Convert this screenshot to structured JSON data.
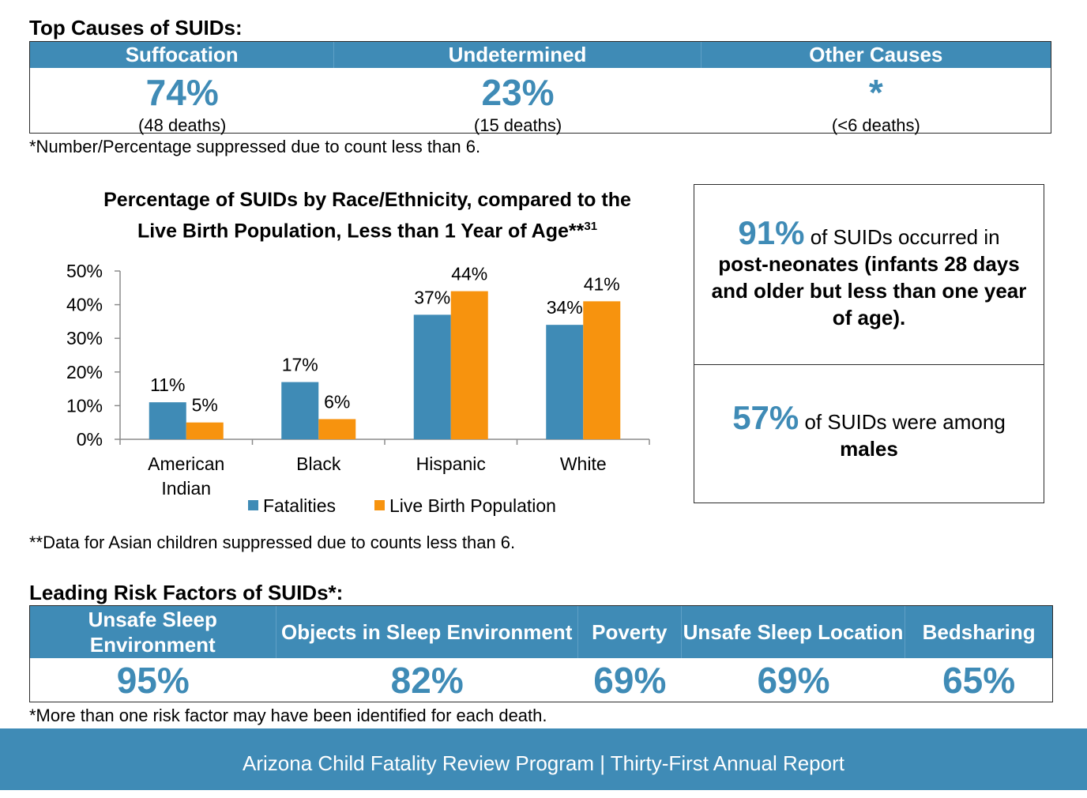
{
  "causes": {
    "title": "Top Causes of SUIDs:",
    "columns": [
      {
        "header": "Suffocation",
        "pct": "74%",
        "count": "(48 deaths)"
      },
      {
        "header": "Undetermined",
        "pct": "23%",
        "count": "(15 deaths)"
      },
      {
        "header": "Other Causes",
        "pct": "*",
        "count": "(<6 deaths)"
      }
    ],
    "note": "*Number/Percentage suppressed due to count less than 6."
  },
  "chart": {
    "title_line1": "Percentage of SUIDs by Race/Ethnicity, compared to the",
    "title_line2": "Live Birth Population, Less than 1 Year of Age**",
    "title_sup": "31",
    "note": "**Data for Asian children suppressed due to counts less than 6."
  },
  "chart_data": {
    "type": "bar",
    "categories": [
      "American Indian",
      "Black",
      "Hispanic",
      "White"
    ],
    "series": [
      {
        "name": "Fatalities",
        "values": [
          11,
          17,
          37,
          34
        ],
        "labels": [
          "11%",
          "17%",
          "37%",
          "34%"
        ],
        "color": "#3f8bb6"
      },
      {
        "name": "Live Birth Population",
        "values": [
          5,
          6,
          44,
          41
        ],
        "labels": [
          "5%",
          "6%",
          "44%",
          "41%"
        ],
        "color": "#f7930e"
      }
    ],
    "yticks": [
      "0%",
      "10%",
      "20%",
      "30%",
      "40%",
      "50%"
    ],
    "ylim": [
      0,
      50
    ],
    "legend": "bottom",
    "grid": false
  },
  "stats": {
    "stat1_pct": "91%",
    "stat1_text": " of SUIDs occurred in",
    "stat1_bold": "post-neonates (infants 28 days and older but less than one year of age).",
    "stat2_pct": "57%",
    "stat2_text": " of SUIDs were among",
    "stat2_bold": "males"
  },
  "risk": {
    "title": "Leading Risk Factors of SUIDs*:",
    "columns": [
      {
        "header": "Unsafe Sleep Environment",
        "pct": "95%"
      },
      {
        "header": "Objects in Sleep Environment",
        "pct": "82%"
      },
      {
        "header": "Poverty",
        "pct": "69%"
      },
      {
        "header": "Unsafe Sleep Location",
        "pct": "69%"
      },
      {
        "header": "Bedsharing",
        "pct": "65%"
      }
    ],
    "note": "*More than one risk factor may have been identified for each death."
  },
  "footer": {
    "text": "Arizona Child Fatality Review Program | Thirty-First Annual Report"
  },
  "colors": {
    "accent": "#3f8bb6",
    "orange": "#f7930e"
  }
}
